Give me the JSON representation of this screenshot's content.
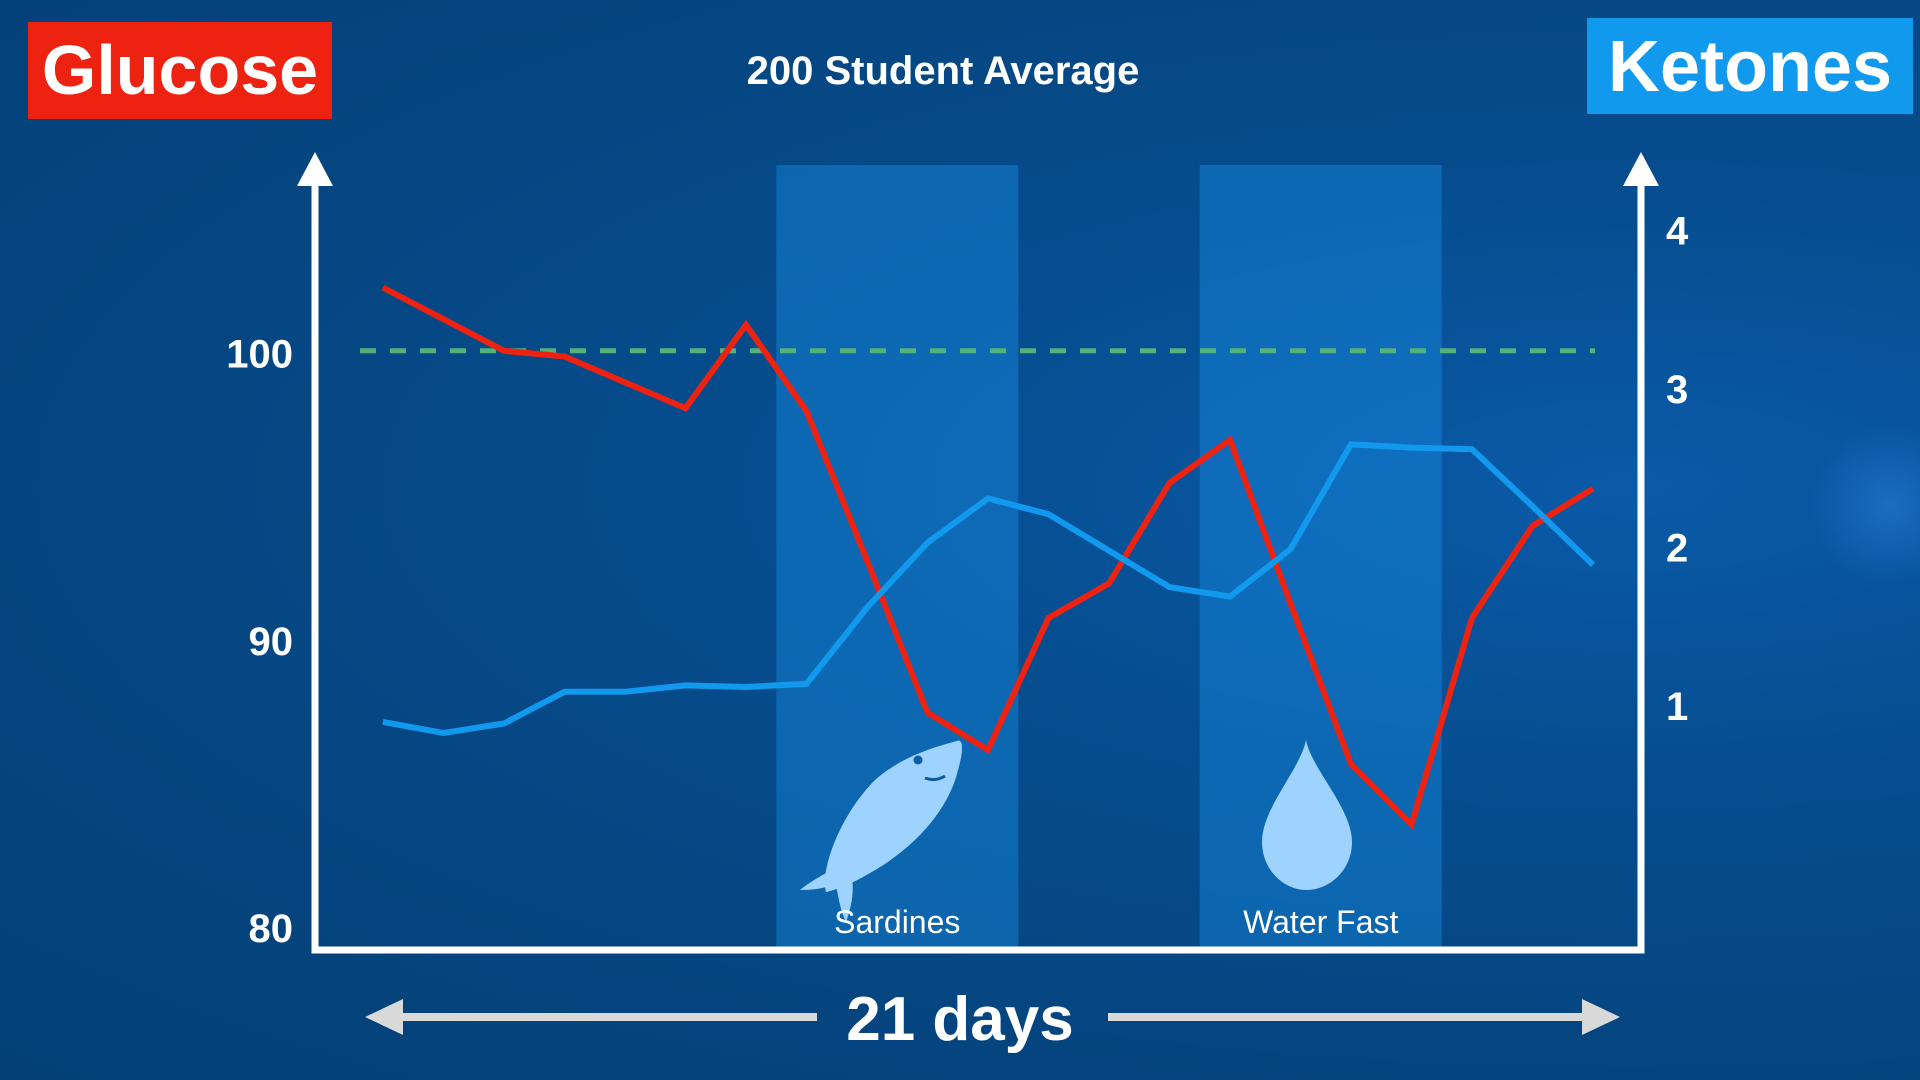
{
  "chart_data": {
    "type": "line",
    "title": "200 Student Average",
    "left_axis": {
      "label": "Glucose",
      "ticks": [
        100,
        90,
        80
      ],
      "range": [
        80,
        106.5
      ],
      "color": "#ee2211"
    },
    "right_axis": {
      "label": "Ketones",
      "ticks": [
        4,
        3,
        2,
        1
      ],
      "range": [
        -0.4,
        4.4
      ],
      "color": "#1199ee"
    },
    "x_label": "21 days",
    "x": [
      1,
      2,
      3,
      4,
      5,
      6,
      7,
      8,
      9,
      10,
      11,
      12,
      13,
      14,
      15,
      16,
      17,
      18,
      19,
      20,
      21
    ],
    "reference_line": {
      "axis": "left",
      "value": 100.1,
      "style": "dashed",
      "color": "#52b27a"
    },
    "bands": [
      {
        "label": "Sardines",
        "start": 8,
        "end": 11,
        "icon": "fish-icon"
      },
      {
        "label": "Water Fast",
        "start": 15,
        "end": 18,
        "icon": "water-drop-icon"
      }
    ],
    "series": [
      {
        "name": "Glucose",
        "axis": "left",
        "color": "#ee2211",
        "values": [
          102.3,
          101.2,
          100.1,
          99.9,
          99.0,
          98.1,
          101.0,
          98.0,
          92.8,
          87.5,
          86.2,
          90.8,
          92.0,
          95.5,
          97.0,
          91.3,
          85.7,
          83.6,
          90.8,
          94.0,
          95.3
        ]
      },
      {
        "name": "Ketones",
        "axis": "right",
        "color": "#1199ee",
        "values": [
          0.9,
          0.83,
          0.89,
          1.09,
          1.09,
          1.13,
          1.12,
          1.14,
          1.62,
          2.03,
          2.31,
          2.21,
          1.98,
          1.75,
          1.69,
          1.99,
          2.65,
          2.63,
          2.62,
          2.26,
          1.89
        ]
      }
    ]
  }
}
